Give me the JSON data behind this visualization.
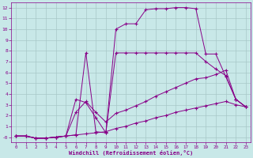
{
  "bg_color": "#c8e8e8",
  "grid_color": "#a8c8c8",
  "line_color": "#880088",
  "xlabel": "Windchill (Refroidissement éolien,°C)",
  "xlabel_color": "#880088",
  "tick_color": "#880088",
  "xlim": [
    -0.5,
    23.5
  ],
  "ylim": [
    -0.5,
    12.5
  ],
  "xticks": [
    0,
    1,
    2,
    3,
    4,
    5,
    6,
    7,
    8,
    9,
    10,
    11,
    12,
    13,
    14,
    15,
    16,
    17,
    18,
    19,
    20,
    21,
    22,
    23
  ],
  "yticks": [
    0,
    1,
    2,
    3,
    4,
    5,
    6,
    7,
    8,
    9,
    10,
    11,
    12
  ],
  "ytick_labels": [
    "-0",
    "1",
    "2",
    "3",
    "4",
    "5",
    "6",
    "7",
    "8",
    "9",
    "10",
    "11",
    "12"
  ],
  "curve1_x": [
    0,
    1,
    2,
    3,
    4,
    5,
    6,
    7,
    8,
    9,
    10,
    11,
    12,
    13,
    14,
    15,
    16,
    17,
    18,
    19,
    20,
    21,
    22,
    23
  ],
  "curve1_y": [
    0.1,
    0.1,
    -0.1,
    -0.1,
    0.0,
    0.1,
    0.2,
    7.8,
    0.5,
    0.4,
    10.0,
    10.5,
    10.5,
    11.8,
    11.9,
    11.9,
    12.0,
    12.0,
    11.9,
    7.7,
    7.7,
    5.6,
    3.5,
    2.8
  ],
  "curve2_x": [
    0,
    1,
    2,
    3,
    4,
    5,
    6,
    7,
    8,
    9,
    10,
    11,
    12,
    13,
    14,
    15,
    16,
    17,
    18,
    19,
    20,
    21,
    22,
    23
  ],
  "curve2_y": [
    0.1,
    0.1,
    -0.1,
    -0.1,
    0.0,
    0.1,
    3.5,
    3.2,
    1.8,
    0.4,
    7.8,
    7.8,
    7.8,
    7.8,
    7.8,
    7.8,
    7.8,
    7.8,
    7.8,
    7.0,
    6.3,
    5.7,
    3.5,
    2.8
  ],
  "curve3_x": [
    0,
    1,
    2,
    3,
    4,
    5,
    6,
    7,
    8,
    9,
    10,
    11,
    12,
    13,
    14,
    15,
    16,
    17,
    18,
    19,
    20,
    21,
    22,
    23
  ],
  "curve3_y": [
    0.1,
    0.1,
    -0.1,
    -0.1,
    0.0,
    0.1,
    2.3,
    3.3,
    2.3,
    1.4,
    2.2,
    2.5,
    2.9,
    3.3,
    3.8,
    4.2,
    4.6,
    5.0,
    5.4,
    5.5,
    5.8,
    6.2,
    3.5,
    2.8
  ],
  "curve4_x": [
    0,
    1,
    2,
    3,
    4,
    5,
    6,
    7,
    8,
    9,
    10,
    11,
    12,
    13,
    14,
    15,
    16,
    17,
    18,
    19,
    20,
    21,
    22,
    23
  ],
  "curve4_y": [
    0.1,
    0.1,
    -0.1,
    -0.1,
    0.0,
    0.1,
    0.2,
    0.3,
    0.4,
    0.5,
    0.8,
    1.0,
    1.3,
    1.5,
    1.8,
    2.0,
    2.3,
    2.5,
    2.7,
    2.9,
    3.1,
    3.3,
    3.0,
    2.8
  ]
}
